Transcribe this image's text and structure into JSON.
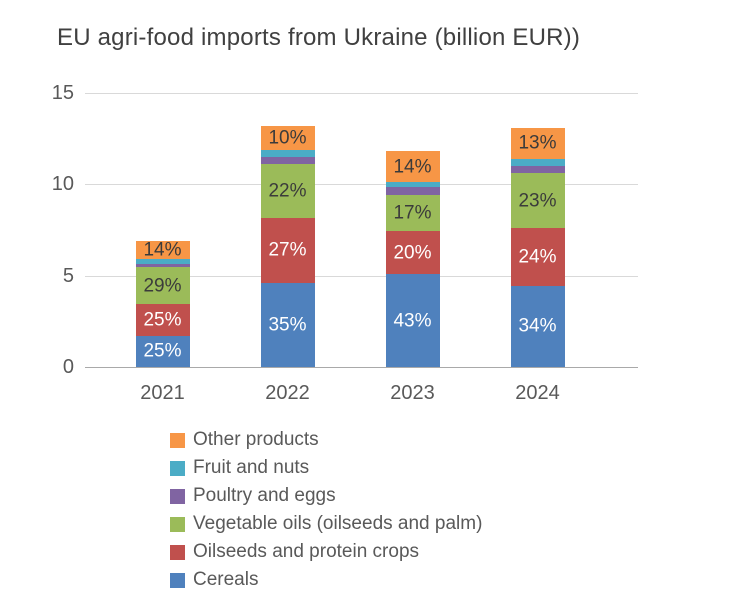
{
  "title": "EU agri-food imports from Ukraine (billion EUR))",
  "chart_data": {
    "type": "bar",
    "stacked": true,
    "title": "EU agri-food imports from Ukraine (billion EUR))",
    "categories": [
      "2021",
      "2022",
      "2023",
      "2024"
    ],
    "totals_billion_eur": [
      6.9,
      13.2,
      11.8,
      13.1
    ],
    "series": [
      {
        "name": "Cereals",
        "color": "#4F81BD",
        "pct": [
          25,
          35,
          43,
          34
        ],
        "labels": [
          "25%",
          "35%",
          "43%",
          "34%"
        ],
        "label_color": "#ffffff"
      },
      {
        "name": "Oilseeds and protein crops",
        "color": "#C0504D",
        "pct": [
          25,
          27,
          20,
          24
        ],
        "labels": [
          "25%",
          "27%",
          "20%",
          "24%"
        ],
        "label_color": "#ffffff"
      },
      {
        "name": "Vegetable oils (oilseeds and palm)",
        "color": "#9BBB59",
        "pct": [
          29,
          22,
          17,
          23
        ],
        "labels": [
          "29%",
          "22%",
          "17%",
          "23%"
        ],
        "label_color": "#3b3b3b"
      },
      {
        "name": "Poultry and eggs",
        "color": "#8064A2",
        "pct": [
          3,
          3,
          3.5,
          3
        ],
        "labels": [
          "",
          "",
          "",
          ""
        ],
        "label_color": "#3b3b3b"
      },
      {
        "name": "Fruit and nuts",
        "color": "#4BACC6",
        "pct": [
          4,
          3,
          2.5,
          3
        ],
        "labels": [
          "",
          "",
          "",
          ""
        ],
        "label_color": "#3b3b3b"
      },
      {
        "name": "Other products",
        "color": "#F79646",
        "pct": [
          14,
          10,
          14,
          13
        ],
        "labels": [
          "14%",
          "10%",
          "14%",
          "13%"
        ],
        "label_color": "#3b3b3b"
      }
    ],
    "stack_order_bottom_to_top": [
      "Cereals",
      "Oilseeds and protein crops",
      "Vegetable oils (oilseeds and palm)",
      "Poultry and eggs",
      "Fruit and nuts",
      "Other products"
    ],
    "ylim": [
      0,
      15
    ],
    "yticks": [
      0,
      5,
      10,
      15
    ],
    "grid": true,
    "legend_position": "bottom-left"
  },
  "axes": {
    "y_tick_labels": [
      "0",
      "5",
      "10",
      "15"
    ],
    "x_tick_labels": [
      "2021",
      "2022",
      "2023",
      "2024"
    ]
  },
  "legend": {
    "items": [
      {
        "label": "Other products",
        "color": "#F79646"
      },
      {
        "label": "Fruit and nuts",
        "color": "#4BACC6"
      },
      {
        "label": "Poultry and eggs",
        "color": "#8064A2"
      },
      {
        "label": "Vegetable oils (oilseeds and palm)",
        "color": "#9BBB59"
      },
      {
        "label": "Oilseeds and protein crops",
        "color": "#C0504D"
      },
      {
        "label": "Cereals",
        "color": "#4F81BD"
      }
    ]
  },
  "colors": {
    "title": "#404040",
    "axis_text": "#595959",
    "gridline": "#d9d9d9",
    "baseline": "#a9a9a9",
    "background": "#ffffff"
  }
}
